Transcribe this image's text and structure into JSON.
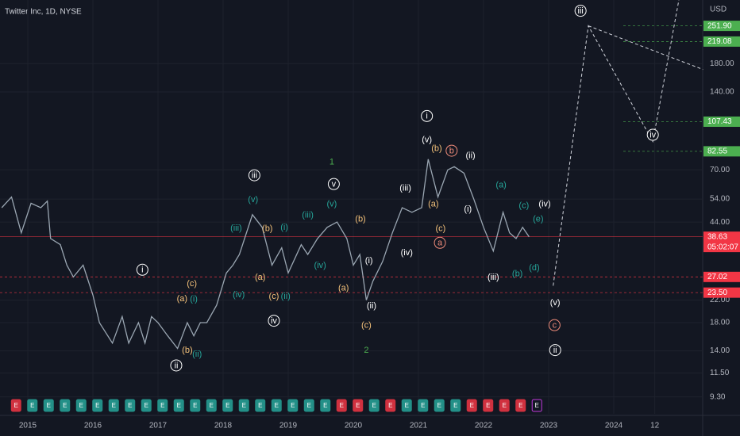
{
  "chart_data": {
    "type": "line",
    "title": "Twitter Inc, 1D, NYSE",
    "y_unit": "USD",
    "log_scale": true,
    "grid": true,
    "xlim": [
      2014.573,
      2025.366
    ],
    "ylim": [
      8,
      317
    ],
    "xticks": [
      2015,
      2016,
      2017,
      2018,
      2019,
      2020,
      2021,
      2022,
      2023,
      2024,
      {
        "value": 2024.63,
        "label": "12"
      }
    ],
    "yticks": [
      {
        "value": 9.3,
        "label": "9.30"
      },
      {
        "value": 11.5,
        "label": "11.50"
      },
      {
        "value": 14,
        "label": "14.00"
      },
      {
        "value": 18,
        "label": "18.00"
      },
      {
        "value": 22,
        "label": "22.00"
      },
      {
        "value": 44,
        "label": "44.00"
      },
      {
        "value": 54,
        "label": "54.00"
      },
      {
        "value": 70,
        "label": "70.00"
      },
      {
        "value": 140,
        "label": "140.00"
      },
      {
        "value": 180,
        "label": "180.00"
      }
    ],
    "series": [
      {
        "color": "#9aa6b2",
        "dash": false,
        "x": [
          2014.6,
          2014.75,
          2014.9,
          2015.05,
          2015.2,
          2015.3,
          2015.35,
          2015.5,
          2015.6,
          2015.7,
          2015.85,
          2016.0,
          2016.1,
          2016.3,
          2016.45,
          2016.55,
          2016.7,
          2016.8,
          2016.9,
          2017.0,
          2017.15,
          2017.3,
          2017.45,
          2017.55,
          2017.65,
          2017.75,
          2017.9,
          2018.05,
          2018.15,
          2018.25,
          2018.45,
          2018.6,
          2018.75,
          2018.9,
          2019.0,
          2019.2,
          2019.3,
          2019.45,
          2019.6,
          2019.75,
          2019.9,
          2020.0,
          2020.1,
          2020.2,
          2020.3,
          2020.45,
          2020.6,
          2020.75,
          2020.9,
          2021.05,
          2021.15,
          2021.3,
          2021.45,
          2021.55,
          2021.7,
          2021.85,
          2022.0,
          2022.15,
          2022.3,
          2022.4,
          2022.5,
          2022.6,
          2022.7
        ],
        "values": [
          50,
          55,
          40,
          52,
          50,
          53,
          38,
          36,
          30,
          27,
          30,
          23,
          18,
          15,
          19,
          15,
          18,
          15,
          19,
          18,
          16,
          14.3,
          18,
          16,
          18,
          18,
          21,
          28,
          30,
          33,
          47,
          42,
          30,
          35,
          28,
          36,
          33,
          38,
          42,
          44,
          38,
          30,
          33,
          22,
          26,
          31,
          40,
          50,
          48,
          50,
          77,
          55,
          70,
          72,
          68,
          54,
          42,
          34,
          48,
          40,
          38,
          42,
          38.6
        ]
      },
      {
        "color": "#d1d4dc",
        "dash": true,
        "x": [
          2023.07,
          2023.61,
          2024.6,
          2025.0
        ],
        "values": [
          25,
          251.9,
          90,
          317
        ]
      },
      {
        "color": "#d1d4dc",
        "dash": true,
        "x": [
          2023.61,
          2025.37
        ],
        "values": [
          251.9,
          171
        ]
      }
    ],
    "levels": {
      "values": [
        251.9,
        219.08,
        107.43,
        82.55,
        38.63,
        27.02,
        23.5
      ],
      "value_labels": [
        "251.90",
        "219.08",
        "107.43",
        "82.55",
        "38.63",
        "27.02",
        "23.50"
      ],
      "colors": [
        "#4caf50",
        "#4caf50",
        "#4caf50",
        "#4caf50",
        "#f23645",
        "#f23645",
        "#f23645"
      ]
    },
    "countdown": "05:02:07",
    "annotations": [
      {
        "text": "i",
        "t": 2016.76,
        "price": 28.8,
        "color": "#ffffff",
        "circled": true
      },
      {
        "text": "ii",
        "t": 2017.28,
        "price": 12.3,
        "color": "#ffffff",
        "circled": true
      },
      {
        "text": "(a)",
        "t": 2017.37,
        "price": 22.3,
        "color": "#f5c27a",
        "circled": false
      },
      {
        "text": "(c)",
        "t": 2017.52,
        "price": 25.5,
        "color": "#f5c27a",
        "circled": false
      },
      {
        "text": "(b)",
        "t": 2017.45,
        "price": 14.1,
        "color": "#f5c27a",
        "circled": false
      },
      {
        "text": "(i)",
        "t": 2017.55,
        "price": 22.2,
        "color": "#26a69a",
        "circled": false
      },
      {
        "text": "(ii)",
        "t": 2017.6,
        "price": 13.6,
        "color": "#26a69a",
        "circled": false
      },
      {
        "text": "(iv)",
        "t": 2018.24,
        "price": 23.1,
        "color": "#26a69a",
        "circled": false
      },
      {
        "text": "(iii)",
        "t": 2018.2,
        "price": 41.8,
        "color": "#26a69a",
        "circled": false
      },
      {
        "text": "iii",
        "t": 2018.48,
        "price": 66.7,
        "color": "#ffffff",
        "circled": true
      },
      {
        "text": "(v)",
        "t": 2018.46,
        "price": 53.9,
        "color": "#26a69a",
        "circled": false
      },
      {
        "text": "(b)",
        "t": 2018.68,
        "price": 41.6,
        "color": "#f5c27a",
        "circled": false
      },
      {
        "text": "(a)",
        "t": 2018.57,
        "price": 27.0,
        "color": "#f5c27a",
        "circled": false
      },
      {
        "text": "(c)",
        "t": 2018.78,
        "price": 22.8,
        "color": "#f5c27a",
        "circled": false
      },
      {
        "text": "iv",
        "t": 2018.78,
        "price": 18.3,
        "color": "#ffffff",
        "circled": true
      },
      {
        "text": "(ii)",
        "t": 2018.96,
        "price": 22.8,
        "color": "#26a69a",
        "circled": false
      },
      {
        "text": "(i)",
        "t": 2018.94,
        "price": 42,
        "color": "#26a69a",
        "circled": false
      },
      {
        "text": "(iii)",
        "t": 2019.3,
        "price": 46.9,
        "color": "#26a69a",
        "circled": false
      },
      {
        "text": "(iv)",
        "t": 2019.49,
        "price": 30,
        "color": "#26a69a",
        "circled": false
      },
      {
        "text": "(v)",
        "t": 2019.67,
        "price": 51.7,
        "color": "#26a69a",
        "circled": false
      },
      {
        "text": "v",
        "t": 2019.7,
        "price": 61.7,
        "color": "#ffffff",
        "circled": true
      },
      {
        "text": "1",
        "t": 2019.67,
        "price": 75.2,
        "color": "#4caf50",
        "circled": false
      },
      {
        "text": "(b)",
        "t": 2020.11,
        "price": 45.2,
        "color": "#f5c27a",
        "circled": false
      },
      {
        "text": "(a)",
        "t": 2019.85,
        "price": 24.5,
        "color": "#f5c27a",
        "circled": false
      },
      {
        "text": "(c)",
        "t": 2020.2,
        "price": 17.6,
        "color": "#f5c27a",
        "circled": false
      },
      {
        "text": "2",
        "t": 2020.2,
        "price": 14.1,
        "color": "#4caf50",
        "circled": false
      },
      {
        "text": "(i)",
        "t": 2020.24,
        "price": 31.3,
        "color": "#ffffff",
        "circled": false
      },
      {
        "text": "(ii)",
        "t": 2020.28,
        "price": 20.9,
        "color": "#ffffff",
        "circled": false
      },
      {
        "text": "(iv)",
        "t": 2020.82,
        "price": 33.6,
        "color": "#ffffff",
        "circled": false
      },
      {
        "text": "(iii)",
        "t": 2020.8,
        "price": 59.5,
        "color": "#ffffff",
        "circled": false
      },
      {
        "text": "i",
        "t": 2021.13,
        "price": 113,
        "color": "#ffffff",
        "circled": true
      },
      {
        "text": "(v)",
        "t": 2021.13,
        "price": 91.6,
        "color": "#ffffff",
        "circled": false
      },
      {
        "text": "(b)",
        "t": 2021.28,
        "price": 84.8,
        "color": "#f5c27a",
        "circled": false
      },
      {
        "text": "b",
        "t": 2021.51,
        "price": 83,
        "color": "#f08c7a",
        "circled": true
      },
      {
        "text": "(a)",
        "t": 2021.23,
        "price": 51.7,
        "color": "#f5c27a",
        "circled": false
      },
      {
        "text": "(c)",
        "t": 2021.34,
        "price": 41.6,
        "color": "#f5c27a",
        "circled": false
      },
      {
        "text": "a",
        "t": 2021.33,
        "price": 36.6,
        "color": "#f08c7a",
        "circled": true
      },
      {
        "text": "(ii)",
        "t": 2021.8,
        "price": 79.6,
        "color": "#ffffff",
        "circled": false
      },
      {
        "text": "(i)",
        "t": 2021.76,
        "price": 49.5,
        "color": "#ffffff",
        "circled": false
      },
      {
        "text": "(iii)",
        "t": 2022.15,
        "price": 27,
        "color": "#ffffff",
        "circled": false
      },
      {
        "text": "(a)",
        "t": 2022.27,
        "price": 61.3,
        "color": "#26a69a",
        "circled": false
      },
      {
        "text": "(c)",
        "t": 2022.62,
        "price": 51,
        "color": "#26a69a",
        "circled": false
      },
      {
        "text": "(e)",
        "t": 2022.84,
        "price": 45.2,
        "color": "#26a69a",
        "circled": false
      },
      {
        "text": "(b)",
        "t": 2022.52,
        "price": 27.8,
        "color": "#26a69a",
        "circled": false
      },
      {
        "text": "(d)",
        "t": 2022.78,
        "price": 29.4,
        "color": "#26a69a",
        "circled": false
      },
      {
        "text": "(iv)",
        "t": 2022.94,
        "price": 51.7,
        "color": "#ffffff",
        "circled": false
      },
      {
        "text": "(v)",
        "t": 2023.1,
        "price": 21.5,
        "color": "#ffffff",
        "circled": false
      },
      {
        "text": "c",
        "t": 2023.09,
        "price": 17.6,
        "color": "#f08c7a",
        "circled": true
      },
      {
        "text": "ii",
        "t": 2023.1,
        "price": 14.1,
        "color": "#ffffff",
        "circled": true
      },
      {
        "text": "iii",
        "t": 2023.49,
        "price": 288,
        "color": "#ffffff",
        "circled": true
      },
      {
        "text": "iv",
        "t": 2024.6,
        "price": 95.6,
        "color": "#ffffff",
        "circled": true
      }
    ],
    "earnings": {
      "label": "E",
      "t": [
        2014.82,
        2015.07,
        2015.32,
        2015.57,
        2015.82,
        2016.07,
        2016.32,
        2016.57,
        2016.82,
        2017.07,
        2017.32,
        2017.57,
        2017.82,
        2018.07,
        2018.32,
        2018.57,
        2018.82,
        2019.07,
        2019.32,
        2019.57,
        2019.82,
        2020.07,
        2020.32,
        2020.57,
        2020.82,
        2021.07,
        2021.32,
        2021.57,
        2021.82,
        2022.07,
        2022.32,
        2022.57,
        2022.82
      ],
      "colors": [
        "#f23645",
        "#26a69a",
        "#26a69a",
        "#26a69a",
        "#26a69a",
        "#26a69a",
        "#26a69a",
        "#26a69a",
        "#26a69a",
        "#26a69a",
        "#26a69a",
        "#26a69a",
        "#26a69a",
        "#26a69a",
        "#26a69a",
        "#26a69a",
        "#26a69a",
        "#26a69a",
        "#26a69a",
        "#26a69a",
        "#f23645",
        "#f23645",
        "#26a69a",
        "#f23645",
        "#26a69a",
        "#26a69a",
        "#26a69a",
        "#26a69a",
        "#f23645",
        "#f23645",
        "#f23645",
        "#f23645",
        "#e040fb"
      ]
    }
  }
}
